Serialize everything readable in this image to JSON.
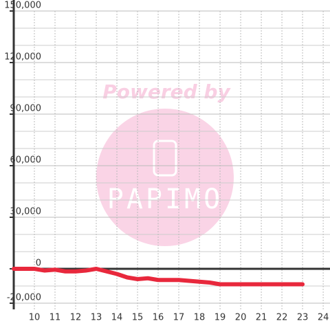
{
  "chart_data": {
    "type": "line",
    "x": [
      9,
      9.5,
      10,
      10.5,
      11,
      11.5,
      12,
      12.5,
      13,
      13.5,
      14,
      14.5,
      15,
      15.5,
      16,
      16.5,
      17,
      17.5,
      18,
      18.5,
      19,
      19.5,
      20,
      21,
      22,
      23
    ],
    "series": [
      {
        "color": "#e8283c",
        "values": [
          0,
          0,
          0,
          -1000,
          -500,
          -1500,
          -1500,
          -1000,
          0,
          -1500,
          -3000,
          -5000,
          -6000,
          -5500,
          -6500,
          -6500,
          -6500,
          -7000,
          -7500,
          -8000,
          -9000,
          -9000,
          -9000,
          -9000,
          -9000,
          -9000
        ]
      }
    ],
    "xlim": [
      9,
      24.33
    ],
    "xticks": [
      10,
      11,
      12,
      13,
      14,
      15,
      16,
      17,
      18,
      19,
      20,
      21,
      22,
      23,
      24
    ],
    "ylim": [
      -23600,
      150000
    ],
    "yticks": [
      {
        "value": -20000,
        "label": "-20,000"
      },
      0,
      {
        "value": 30000,
        "label": "30,000"
      },
      {
        "value": 60000,
        "label": "60,000"
      },
      {
        "value": 90000,
        "label": "90,000"
      },
      {
        "value": 120000,
        "label": "120,000"
      },
      {
        "value": 150000,
        "label": "150,000"
      }
    ],
    "ygrid": [
      -10000,
      10000,
      20000,
      40000,
      50000,
      70000,
      80000,
      100000,
      110000,
      130000,
      140000
    ],
    "grid": true,
    "watermark": {
      "line1": "Powered by",
      "line2": "PAPIMO"
    }
  }
}
